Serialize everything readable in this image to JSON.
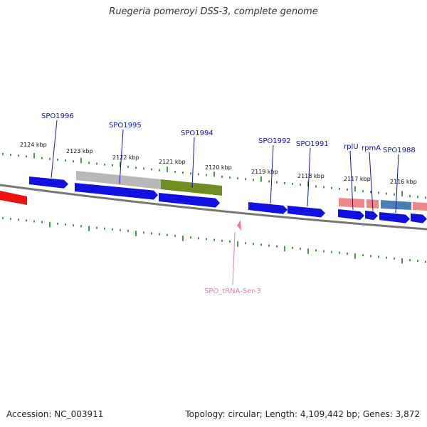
{
  "title": "Ruegeria pomeroyi DSS-3, complete genome",
  "footer": {
    "accession": "Accession: NC_003911",
    "topology": "Topology: circular; Length: 4,109,442 bp; Genes: 3,872"
  },
  "colors": {
    "cds": "#1010e0",
    "cds_highlight": "#ee1111",
    "gene_label": "#1010c0",
    "trna": "#e87ab0",
    "tick": "#207a20",
    "backbone": "#777777",
    "feature_grey": "#b8b8b8",
    "feature_green": "#6f8e22",
    "feature_pink": "#ee8888",
    "feature_steel": "#4a7fb0"
  },
  "kbp_labels": [
    "2124 kbp",
    "2123 kbp",
    "2122 kbp",
    "2121 kbp",
    "2120 kbp",
    "2119 kbp",
    "2118 kbp",
    "2117 kbp",
    "2116 kbp"
  ],
  "genes": [
    "SPO1996",
    "SPO1995",
    "SPO1994",
    "SPO1992",
    "SPO1991",
    "rplU",
    "rpmA",
    "SPO1988"
  ],
  "trna": "SPO_tRNA-Ser-3"
}
